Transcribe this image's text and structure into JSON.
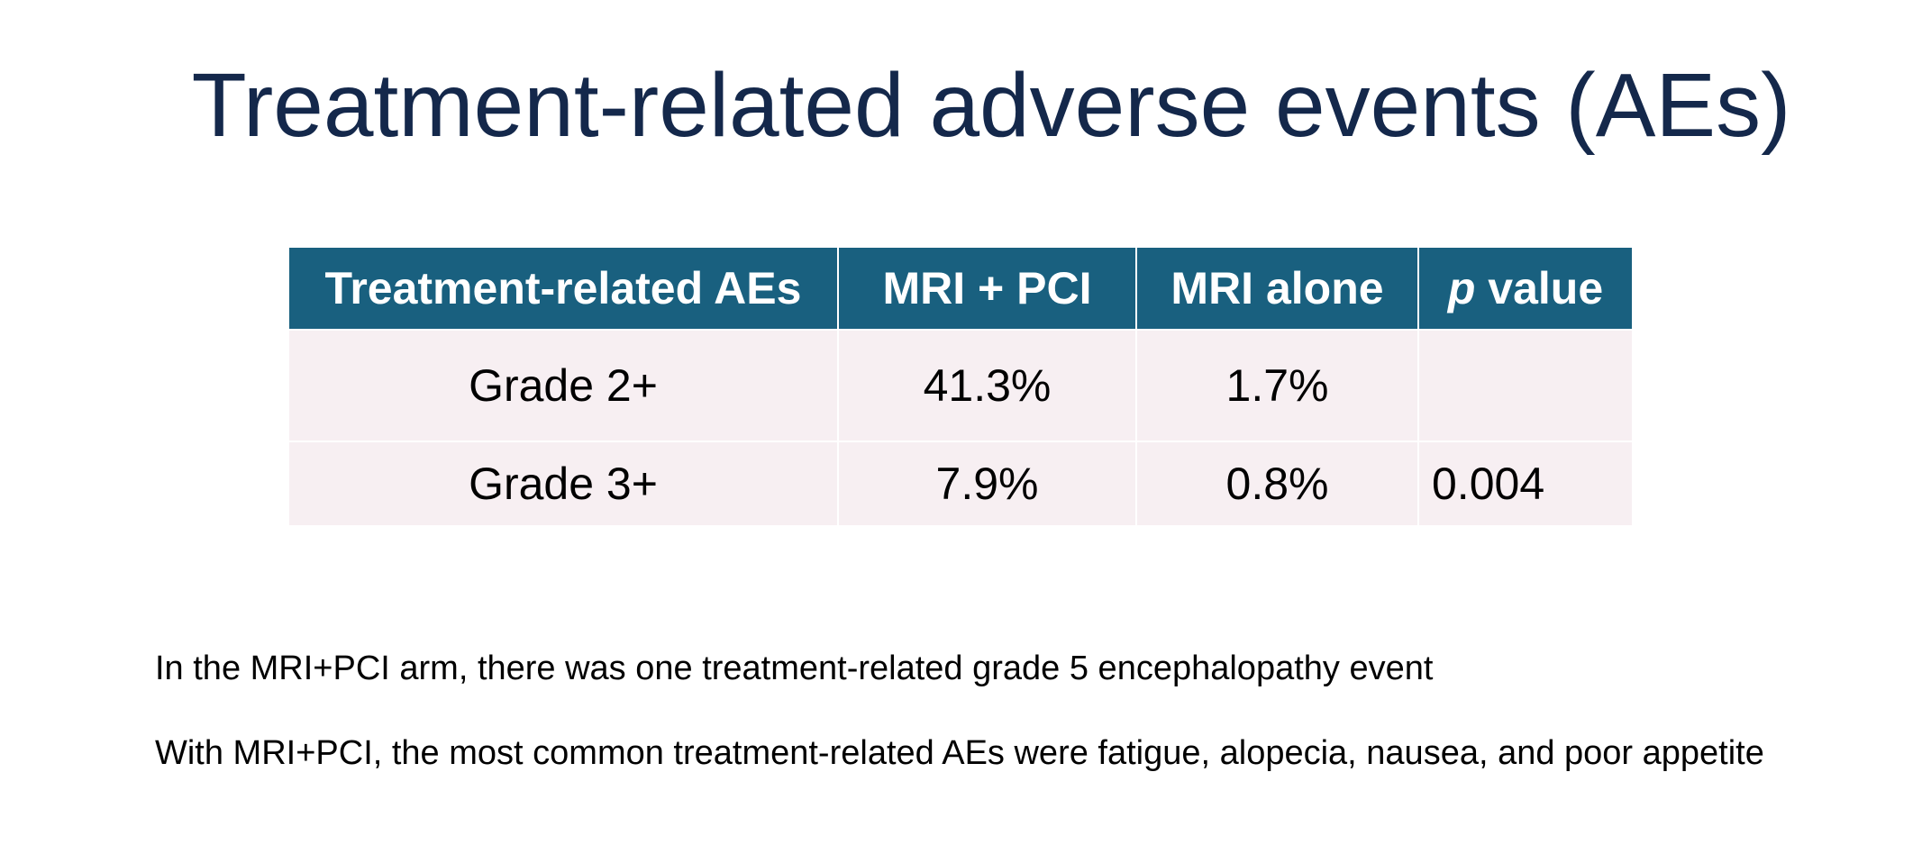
{
  "title": "Treatment-related adverse events (AEs)",
  "table": {
    "headers": [
      "Treatment-related AEs",
      "MRI + PCI",
      "MRI alone"
    ],
    "pvalue_header": {
      "italic": "p",
      "rest": " value"
    },
    "rows": [
      {
        "label": "Grade 2+",
        "mri_pci": "41.3%",
        "mri_alone": "1.7%",
        "p_value": ""
      },
      {
        "label": "Grade 3+",
        "mri_pci": "7.9%",
        "mri_alone": "0.8%",
        "p_value": "0.004"
      }
    ]
  },
  "notes": [
    "In the MRI+PCI arm, there was one treatment-related grade 5 encephalopathy event",
    "With MRI+PCI, the most common treatment-related AEs were fatigue, alopecia, nausea, and poor appetite"
  ],
  "colors": {
    "title": "#14284b",
    "header_bg": "#19607f",
    "row_bg": "#f7eff2"
  }
}
